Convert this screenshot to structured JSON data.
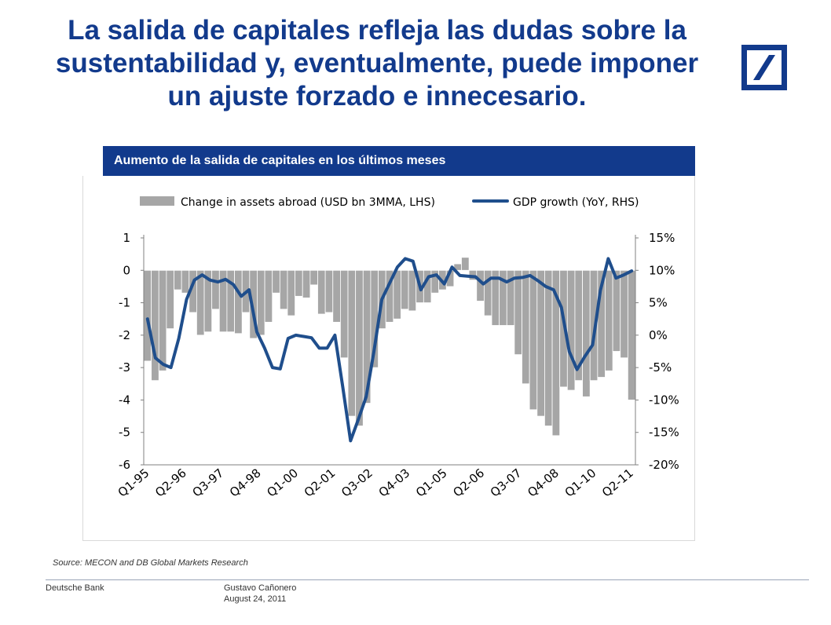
{
  "slide": {
    "title_line1": "La salida de capitales refleja las dudas sobre la",
    "title_line2": "sustentabilidad y, eventualmente, puede imponer",
    "title_line3": "un ajuste forzado e innecesario.",
    "logo_icon": "deutsche-bank-slash-logo",
    "brand_color": "#123a8c",
    "panel_title": "Aumento de la salida de capitales en los últimos meses",
    "source": "Source: MECON and DB Global Markets Research",
    "footer_company": "Deutsche Bank",
    "footer_author": "Gustavo Cañonero",
    "footer_date": "August 24, 2011"
  },
  "chart_data": {
    "type": "bar",
    "title": "",
    "legend_position": "top",
    "grid": false,
    "y_left_ticks": [
      "1",
      "0",
      "-1",
      "-2",
      "-3",
      "-4",
      "-5",
      "-6"
    ],
    "y_right_ticks": [
      "15%",
      "10%",
      "5%",
      "0%",
      "-5%",
      "-10%",
      "-15%",
      "-20%"
    ],
    "x_tick_labels": [
      "Q1-95",
      "Q2-96",
      "Q3-97",
      "Q4-98",
      "Q1-00",
      "Q2-01",
      "Q3-02",
      "Q4-03",
      "Q1-05",
      "Q2-06",
      "Q3-07",
      "Q4-08",
      "Q1-10",
      "Q2-11"
    ],
    "ylim_left": [
      -6,
      1
    ],
    "ylim_right": [
      -20,
      15
    ],
    "bar_color": "#a6a6a6",
    "line_color": "#1f4e8c",
    "series": [
      {
        "name": "Change in assets abroad (USD bn 3MMA, LHS)",
        "type": "bar",
        "axis": "left",
        "values": [
          -2.8,
          -3.4,
          -3.1,
          -1.8,
          -0.6,
          -0.7,
          -1.3,
          -2.0,
          -1.9,
          -1.2,
          -1.9,
          -1.9,
          -1.95,
          -1.3,
          -2.1,
          -2.0,
          -1.6,
          -0.7,
          -1.2,
          -1.4,
          -0.8,
          -0.85,
          -0.45,
          -1.35,
          -1.3,
          -1.6,
          -2.7,
          -4.5,
          -4.8,
          -4.1,
          -3.0,
          -1.8,
          -1.6,
          -1.5,
          -1.2,
          -1.25,
          -1.0,
          -1.0,
          -0.7,
          -0.6,
          -0.5,
          0.2,
          0.4,
          -0.3,
          -0.95,
          -1.4,
          -1.7,
          -1.7,
          -1.7,
          -2.6,
          -3.5,
          -4.3,
          -4.5,
          -4.8,
          -5.1,
          -3.6,
          -3.7,
          -3.4,
          -3.9,
          -3.4,
          -3.3,
          -3.1,
          -2.5,
          -2.7,
          -4.0
        ]
      },
      {
        "name": "GDP growth (YoY, RHS)",
        "type": "line",
        "axis": "right",
        "values": [
          2.5,
          -3.5,
          -4.5,
          -5.0,
          -0.5,
          5.5,
          8.5,
          9.3,
          8.5,
          8.2,
          8.6,
          7.8,
          6.0,
          7.0,
          0.5,
          -2.0,
          -5.0,
          -5.2,
          -0.5,
          0.0,
          -0.2,
          -0.4,
          -2.0,
          -2.0,
          0.0,
          -8.0,
          -16.3,
          -13.0,
          -9.5,
          -2.5,
          5.5,
          8.0,
          10.5,
          11.8,
          11.4,
          7.0,
          9.0,
          9.3,
          7.9,
          10.5,
          9.2,
          9.1,
          9.0,
          7.9,
          8.8,
          8.8,
          8.2,
          8.8,
          8.9,
          9.2,
          8.4,
          7.5,
          7.0,
          4.3,
          -2.5,
          -5.3,
          -3.3,
          -1.5,
          6.9,
          11.8,
          8.8,
          9.3,
          9.9
        ]
      }
    ]
  }
}
